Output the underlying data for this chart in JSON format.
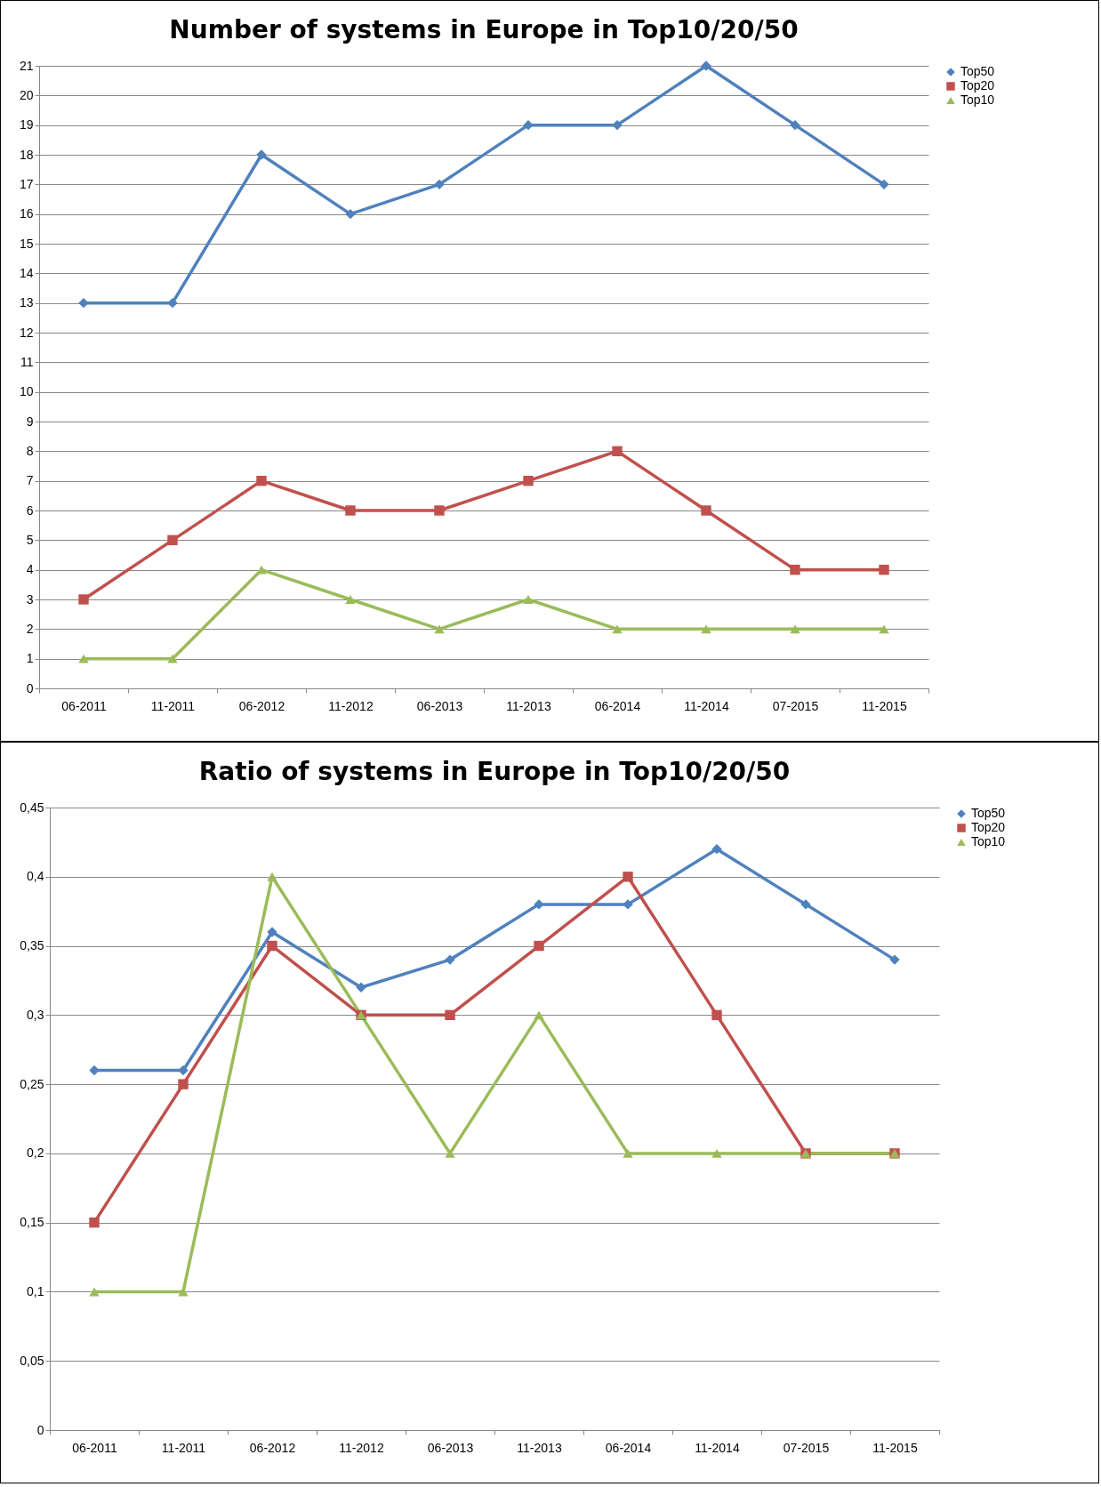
{
  "chart_data": [
    {
      "type": "line",
      "title": "Number of systems in Europe in Top10/20/50",
      "categories": [
        "06-2011",
        "11-2011",
        "06-2012",
        "11-2012",
        "06-2013",
        "11-2013",
        "06-2014",
        "11-2014",
        "07-2015",
        "11-2015"
      ],
      "ylim": [
        0,
        21
      ],
      "yticks": [
        0,
        1,
        2,
        3,
        4,
        5,
        6,
        7,
        8,
        9,
        10,
        11,
        12,
        13,
        14,
        15,
        16,
        17,
        18,
        19,
        20,
        21
      ],
      "grid": "y",
      "legend": "right",
      "series": [
        {
          "name": "Top50",
          "color": "#4f81bd",
          "marker": "diamond",
          "values": [
            13,
            13,
            18,
            16,
            17,
            19,
            19,
            21,
            19,
            17
          ]
        },
        {
          "name": "Top20",
          "color": "#c0504d",
          "marker": "square",
          "values": [
            3,
            5,
            7,
            6,
            6,
            7,
            8,
            6,
            4,
            4
          ]
        },
        {
          "name": "Top10",
          "color": "#9bbb59",
          "marker": "triangle",
          "values": [
            1,
            1,
            4,
            3,
            2,
            3,
            2,
            2,
            2,
            2
          ]
        }
      ]
    },
    {
      "type": "line",
      "title": "Ratio of systems in Europe in Top10/20/50",
      "categories": [
        "06-2011",
        "11-2011",
        "06-2012",
        "11-2012",
        "06-2013",
        "11-2013",
        "06-2014",
        "11-2014",
        "07-2015",
        "11-2015"
      ],
      "ylim": [
        0,
        0.45
      ],
      "yticks": [
        0,
        {
          "value": 0.05,
          "label": "0,05"
        },
        {
          "value": 0.1,
          "label": "0,1"
        },
        {
          "value": 0.15,
          "label": "0,15"
        },
        {
          "value": 0.2,
          "label": "0,2"
        },
        {
          "value": 0.25,
          "label": "0,25"
        },
        {
          "value": 0.3,
          "label": "0,3"
        },
        {
          "value": 0.35,
          "label": "0,35"
        },
        {
          "value": 0.4,
          "label": "0,4"
        },
        {
          "value": 0.45,
          "label": "0,45"
        }
      ],
      "grid": "y",
      "legend": "right",
      "series": [
        {
          "name": "Top50",
          "color": "#4f81bd",
          "marker": "diamond",
          "values": [
            0.26,
            0.26,
            0.36,
            0.32,
            0.34,
            0.38,
            0.38,
            0.42,
            0.38,
            0.34
          ]
        },
        {
          "name": "Top20",
          "color": "#c0504d",
          "marker": "square",
          "values": [
            0.15,
            0.25,
            0.35,
            0.3,
            0.3,
            0.35,
            0.4,
            0.3,
            0.2,
            0.2
          ]
        },
        {
          "name": "Top10",
          "color": "#9bbb59",
          "marker": "triangle",
          "values": [
            0.1,
            0.1,
            0.4,
            0.3,
            0.2,
            0.3,
            0.2,
            0.2,
            0.2,
            0.2
          ]
        }
      ]
    }
  ]
}
